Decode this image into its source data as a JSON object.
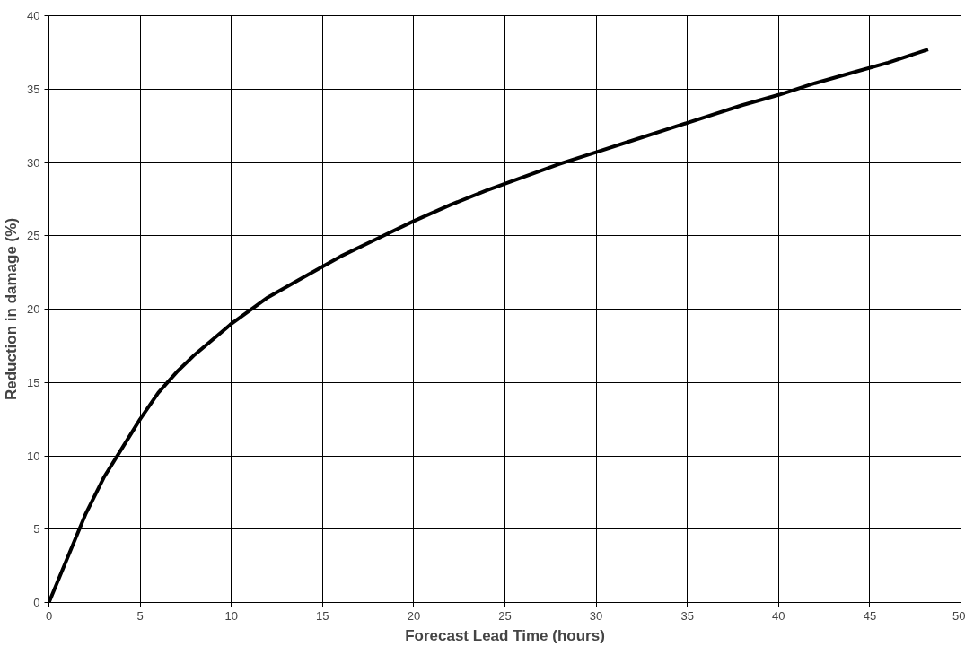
{
  "chart_data": {
    "type": "line",
    "xlabel": "Forecast Lead Time (hours)",
    "ylabel": "Reduction in damage (%)",
    "xlim": [
      0,
      50
    ],
    "ylim": [
      0,
      40
    ],
    "xticks": [
      0,
      5,
      10,
      15,
      20,
      25,
      30,
      35,
      40,
      45,
      50
    ],
    "yticks": [
      0,
      5,
      10,
      15,
      20,
      25,
      30,
      35,
      40
    ],
    "grid": true,
    "marker": "none",
    "line_style": "solid",
    "series": [
      {
        "color": "#000000",
        "x": [
          0,
          1,
          2,
          3,
          4,
          5,
          6,
          7,
          8,
          10,
          12,
          14,
          16,
          18,
          20,
          22,
          24,
          26,
          28,
          30,
          32,
          34,
          36,
          38,
          40,
          42,
          44,
          46,
          48.2
        ],
        "values": [
          0,
          3,
          6,
          8.5,
          10.5,
          12.5,
          14.3,
          15.7,
          16.9,
          19,
          20.8,
          22.2,
          23.6,
          24.8,
          26,
          27.1,
          28.1,
          29,
          29.9,
          30.7,
          31.5,
          32.3,
          33.1,
          33.9,
          34.6,
          35.4,
          36.1,
          36.8,
          37.7
        ]
      }
    ]
  }
}
